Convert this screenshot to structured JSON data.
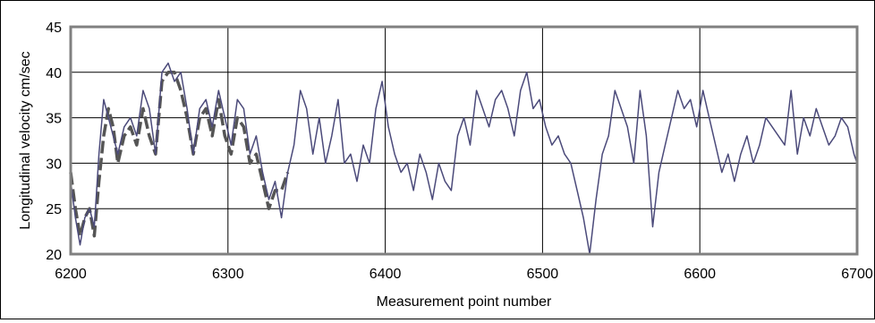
{
  "chart_data": {
    "type": "line",
    "title": "",
    "xlabel": "Measurement point number",
    "ylabel": "Longitudinal velocity cm/sec",
    "xlim": [
      6200,
      6700
    ],
    "ylim": [
      20,
      45
    ],
    "x_ticks": [
      "6200",
      "6300",
      "6400",
      "6500",
      "6600",
      "6700"
    ],
    "y_ticks": [
      "20",
      "25",
      "30",
      "35",
      "40",
      "45"
    ],
    "grid": true,
    "legend": "none",
    "colors": {
      "solid": "#4b4a7a",
      "dashed": "#555555",
      "plot_border": "#808080",
      "grid": "#000000"
    },
    "series": [
      {
        "style": "solid",
        "x": [
          6200,
          6203,
          6206,
          6209,
          6212,
          6215,
          6218,
          6221,
          6224,
          6227,
          6230,
          6234,
          6238,
          6242,
          6246,
          6250,
          6254,
          6258,
          6262,
          6266,
          6270,
          6274,
          6278,
          6282,
          6286,
          6290,
          6294,
          6298,
          6302,
          6306,
          6310,
          6314,
          6318,
          6322,
          6326,
          6330,
          6334,
          6338,
          6342,
          6346,
          6350,
          6354,
          6358,
          6362,
          6366,
          6370,
          6374,
          6378,
          6382,
          6386,
          6390,
          6394,
          6398,
          6402,
          6406,
          6410,
          6414,
          6418,
          6422,
          6426,
          6430,
          6434,
          6438,
          6442,
          6446,
          6450,
          6454,
          6458,
          6462,
          6466,
          6470,
          6474,
          6478,
          6482,
          6486,
          6490,
          6494,
          6498,
          6502,
          6506,
          6510,
          6514,
          6518,
          6522,
          6526,
          6530,
          6534,
          6538,
          6542,
          6546,
          6550,
          6554,
          6558,
          6562,
          6566,
          6570,
          6574,
          6578,
          6582,
          6586,
          6590,
          6594,
          6598,
          6602,
          6606,
          6610,
          6614,
          6618,
          6622,
          6626,
          6630,
          6634,
          6638,
          6642,
          6646,
          6650,
          6654,
          6658,
          6662,
          6666,
          6670,
          6674,
          6678,
          6682,
          6686,
          6690,
          6694,
          6698,
          6700
        ],
        "y": [
          28,
          24,
          21,
          24,
          25,
          23,
          31,
          37,
          35,
          33,
          31,
          34,
          35,
          33,
          38,
          36,
          31,
          40,
          41,
          39,
          40,
          36,
          31,
          36,
          37,
          34,
          38,
          35,
          32,
          37,
          36,
          31,
          33,
          29,
          26,
          28,
          24,
          29,
          32,
          38,
          36,
          31,
          35,
          30,
          33,
          37,
          30,
          31,
          28,
          32,
          30,
          36,
          39,
          34,
          31,
          29,
          30,
          27,
          31,
          29,
          26,
          30,
          28,
          27,
          33,
          35,
          32,
          38,
          36,
          34,
          37,
          38,
          36,
          33,
          38,
          40,
          36,
          37,
          34,
          32,
          33,
          31,
          30,
          27,
          24,
          20,
          26,
          31,
          33,
          38,
          36,
          34,
          30,
          38,
          33,
          23,
          29,
          32,
          35,
          38,
          36,
          37,
          34,
          38,
          35,
          32,
          29,
          31,
          28,
          31,
          33,
          30,
          32,
          35,
          34,
          33,
          32,
          38,
          31,
          35,
          33,
          36,
          34,
          32,
          33,
          35,
          34,
          31,
          30
        ]
      },
      {
        "style": "dashed",
        "x": [
          6200,
          6203,
          6206,
          6209,
          6212,
          6215,
          6218,
          6221,
          6224,
          6227,
          6230,
          6234,
          6238,
          6242,
          6246,
          6250,
          6254,
          6258,
          6262,
          6266,
          6270,
          6274,
          6278,
          6282,
          6286,
          6290,
          6294,
          6298,
          6302,
          6306,
          6310,
          6314,
          6318,
          6322,
          6326,
          6330,
          6334,
          6338
        ],
        "y": [
          29,
          25,
          22,
          24,
          25,
          22,
          28,
          33,
          36,
          34,
          30,
          33,
          34,
          32,
          36,
          33,
          31,
          39,
          40,
          40,
          38,
          35,
          31,
          35,
          36,
          33,
          37,
          33,
          31,
          35,
          34,
          30,
          31,
          28,
          25,
          27,
          27,
          29
        ]
      }
    ]
  }
}
